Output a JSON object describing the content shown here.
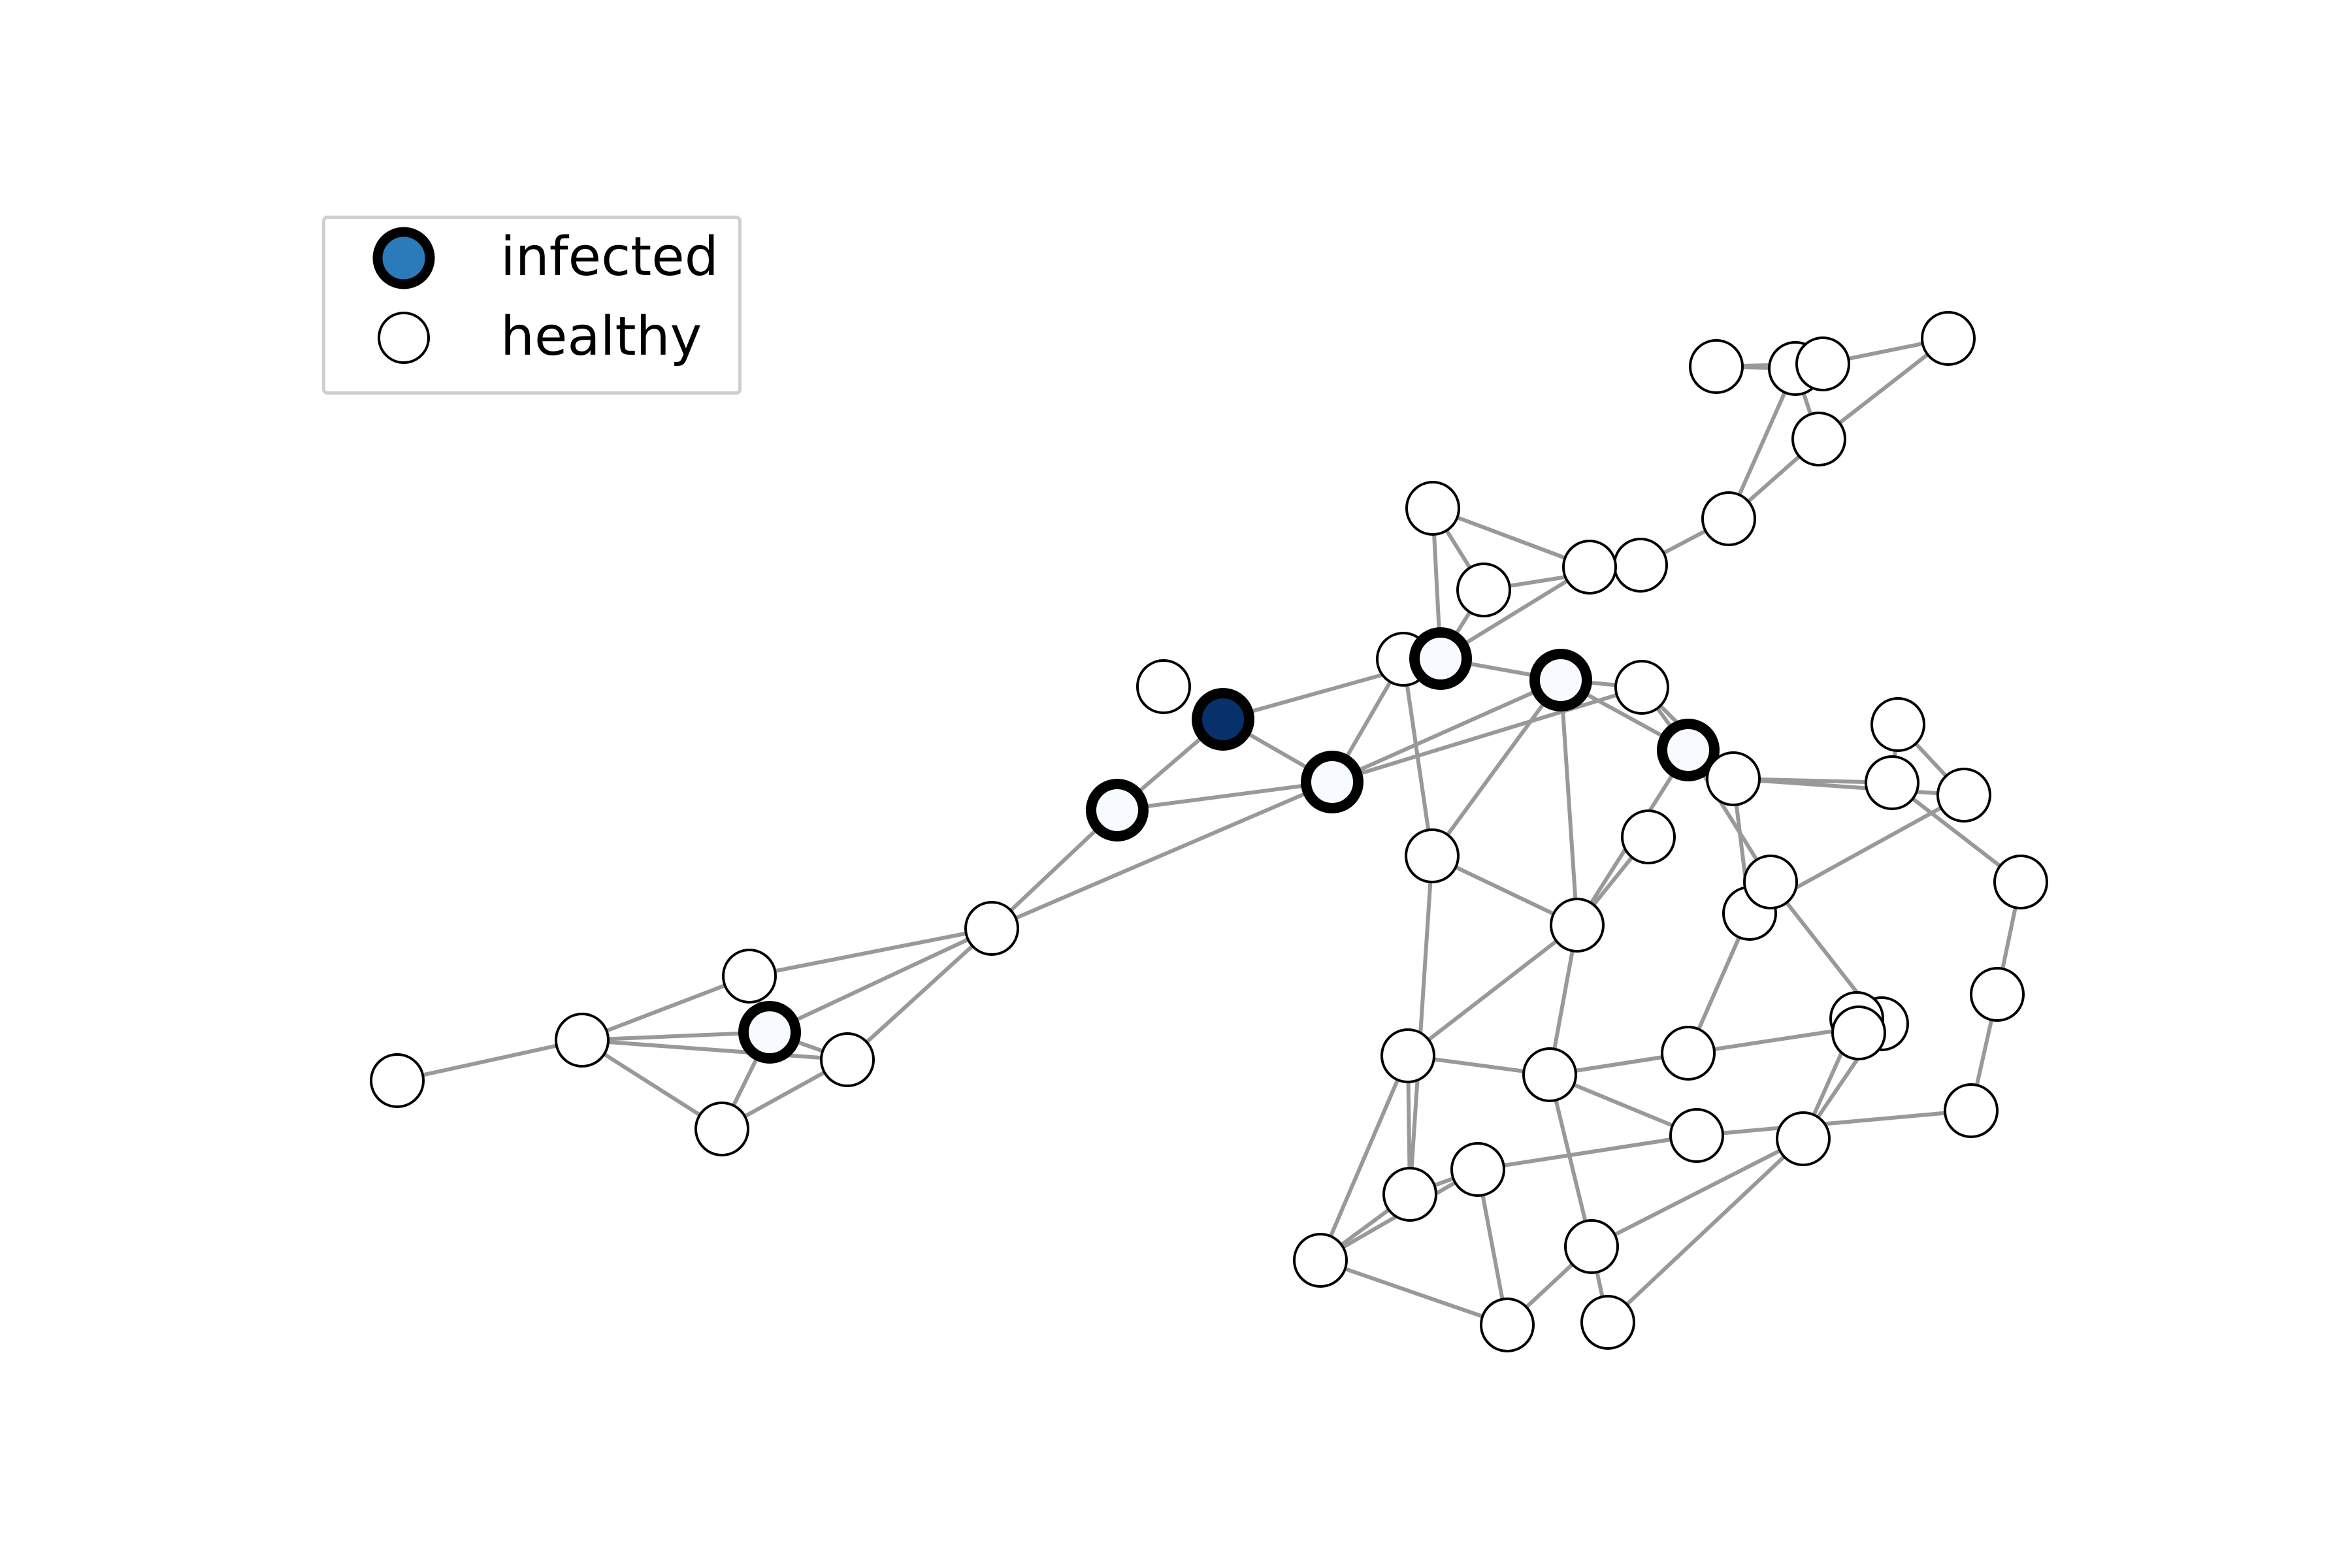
{
  "legend": {
    "infected_label": "infected",
    "healthy_label": "healthy",
    "infected_marker_fill": "#2b7bba",
    "healthy_marker_fill": "#ffffff"
  },
  "colors": {
    "edge": "#999999",
    "edge_highlight": "#555555",
    "node_outline": "#000000",
    "source_fill": "#08306b",
    "infected_fill": "#f7fbff",
    "healthy_fill": "#ffffff"
  },
  "graph": {
    "nodes": [
      {
        "id": "n1",
        "state": "healthy"
      },
      {
        "id": "n2",
        "state": "healthy"
      },
      {
        "id": "n3",
        "state": "healthy"
      },
      {
        "id": "n4",
        "state": "healthy"
      },
      {
        "id": "n5",
        "state": "healthy"
      },
      {
        "id": "n6",
        "state": "healthy"
      },
      {
        "id": "n7",
        "state": "healthy"
      },
      {
        "id": "n8",
        "state": "healthy"
      },
      {
        "id": "n9",
        "state": "healthy"
      },
      {
        "id": "n10",
        "state": "healthy"
      },
      {
        "id": "n11",
        "state": "healthy"
      },
      {
        "id": "n12",
        "state": "infected"
      },
      {
        "id": "n13",
        "state": "healthy"
      },
      {
        "id": "n14",
        "state": "infected"
      },
      {
        "id": "n15",
        "state": "healthy"
      },
      {
        "id": "n16",
        "state": "source"
      },
      {
        "id": "n17",
        "state": "infected"
      },
      {
        "id": "n18",
        "state": "infected"
      },
      {
        "id": "n19",
        "state": "healthy"
      },
      {
        "id": "n20",
        "state": "infected"
      },
      {
        "id": "n21",
        "state": "healthy"
      },
      {
        "id": "n22",
        "state": "healthy"
      },
      {
        "id": "n23",
        "state": "healthy"
      },
      {
        "id": "n24",
        "state": "healthy"
      },
      {
        "id": "n25",
        "state": "healthy"
      },
      {
        "id": "n26",
        "state": "healthy"
      },
      {
        "id": "n27",
        "state": "healthy"
      },
      {
        "id": "n28",
        "state": "healthy"
      },
      {
        "id": "n29",
        "state": "healthy"
      },
      {
        "id": "n30",
        "state": "healthy"
      },
      {
        "id": "n31",
        "state": "healthy"
      },
      {
        "id": "n32",
        "state": "healthy"
      },
      {
        "id": "n33",
        "state": "healthy"
      },
      {
        "id": "n34",
        "state": "healthy"
      },
      {
        "id": "n35",
        "state": "healthy"
      },
      {
        "id": "n36",
        "state": "healthy"
      },
      {
        "id": "n37",
        "state": "healthy"
      },
      {
        "id": "n38",
        "state": "healthy"
      },
      {
        "id": "n39",
        "state": "healthy"
      },
      {
        "id": "n40",
        "state": "healthy"
      },
      {
        "id": "n41",
        "state": "healthy"
      },
      {
        "id": "n42",
        "state": "healthy"
      },
      {
        "id": "n43",
        "state": "healthy"
      },
      {
        "id": "n44",
        "state": "healthy"
      },
      {
        "id": "n45",
        "state": "healthy"
      },
      {
        "id": "n46",
        "state": "healthy"
      },
      {
        "id": "n47",
        "state": "healthy"
      },
      {
        "id": "n48",
        "state": "healthy"
      },
      {
        "id": "n49",
        "state": "healthy"
      },
      {
        "id": "n50",
        "state": "infected"
      },
      {
        "id": "n51",
        "state": "healthy"
      },
      {
        "id": "n52",
        "state": "healthy"
      },
      {
        "id": "n53",
        "state": "healthy"
      },
      {
        "id": "n54",
        "state": "healthy"
      },
      {
        "id": "n55",
        "state": "healthy"
      },
      {
        "id": "n56",
        "state": "healthy"
      },
      {
        "id": "n57",
        "state": "healthy"
      }
    ],
    "edges": [
      [
        "n1",
        "n3"
      ],
      [
        "n1",
        "n2"
      ],
      [
        "n2",
        "n4"
      ],
      [
        "n2",
        "n6"
      ],
      [
        "n2",
        "n5"
      ],
      [
        "n3",
        "n4"
      ],
      [
        "n3",
        "n5"
      ],
      [
        "n3",
        "n6"
      ],
      [
        "n4",
        "n5"
      ],
      [
        "n6",
        "n8"
      ],
      [
        "n6",
        "n7"
      ],
      [
        "n5",
        "n8"
      ],
      [
        "n7",
        "n9"
      ],
      [
        "n7",
        "n10"
      ],
      [
        "n7",
        "n11"
      ],
      [
        "n9",
        "n10"
      ],
      [
        "n10",
        "n11"
      ],
      [
        "n10",
        "n12"
      ],
      [
        "n9",
        "n12"
      ],
      [
        "n11",
        "n13"
      ],
      [
        "n11",
        "n15"
      ],
      [
        "n13",
        "n12"
      ],
      [
        "n13",
        "n14"
      ],
      [
        "n14",
        "n15"
      ],
      [
        "n15",
        "n16"
      ],
      [
        "n16",
        "n17"
      ],
      [
        "n15",
        "n18"
      ],
      [
        "n16",
        "n19"
      ],
      [
        "n17",
        "n19"
      ],
      [
        "n17",
        "n20"
      ],
      [
        "n18",
        "n20"
      ],
      [
        "n19",
        "n21"
      ],
      [
        "n19",
        "n22"
      ],
      [
        "n19",
        "n23"
      ],
      [
        "n12",
        "n23"
      ],
      [
        "n12",
        "n24"
      ],
      [
        "n12",
        "n25"
      ],
      [
        "n24",
        "n26"
      ],
      [
        "n24",
        "n25"
      ],
      [
        "n26",
        "n27"
      ],
      [
        "n26",
        "n28"
      ],
      [
        "n27",
        "n29"
      ],
      [
        "n25",
        "n30"
      ],
      [
        "n29",
        "n31"
      ],
      [
        "n30",
        "n31"
      ],
      [
        "n30",
        "n32"
      ],
      [
        "n31",
        "n32"
      ],
      [
        "n12",
        "n32"
      ],
      [
        "n28",
        "n33"
      ],
      [
        "n33",
        "n31"
      ],
      [
        "n34",
        "n19"
      ],
      [
        "n34",
        "n21"
      ],
      [
        "n35",
        "n19"
      ],
      [
        "n20",
        "n35"
      ],
      [
        "n36",
        "n35"
      ],
      [
        "n21",
        "n37"
      ],
      [
        "n35",
        "n37"
      ],
      [
        "n20",
        "n38"
      ],
      [
        "n38",
        "n37"
      ],
      [
        "n38",
        "n35"
      ],
      [
        "n22",
        "n39"
      ],
      [
        "n22",
        "n41"
      ],
      [
        "n39",
        "n40"
      ],
      [
        "n40",
        "n41"
      ],
      [
        "n41",
        "n42"
      ],
      [
        "n42",
        "n44"
      ],
      [
        "n44",
        "n45"
      ],
      [
        "n45",
        "n46"
      ],
      [
        "n46",
        "n47"
      ],
      [
        "n47",
        "n48"
      ],
      [
        "n47",
        "n49"
      ],
      [
        "n48",
        "n49"
      ],
      [
        "n50",
        "n38"
      ],
      [
        "n50",
        "n20"
      ],
      [
        "n50",
        "n37"
      ],
      [
        "n50",
        "n51"
      ],
      [
        "n51",
        "n52"
      ],
      [
        "n52",
        "n53"
      ],
      [
        "n51",
        "n54"
      ],
      [
        "n53",
        "n54"
      ],
      [
        "n54",
        "n55"
      ],
      [
        "n53",
        "n55"
      ],
      [
        "n52",
        "n55"
      ],
      [
        "n55",
        "n56"
      ],
      [
        "n56",
        "n57"
      ],
      [
        "n57",
        "n43"
      ],
      [
        "n43",
        "n41"
      ],
      [
        "n43",
        "n42"
      ],
      [
        "n41",
        "n48"
      ],
      [
        "n48",
        "n43"
      ],
      [
        "n53",
        "n51"
      ],
      [
        "n36",
        "n53"
      ],
      [
        "n44",
        "n36"
      ],
      [
        "n39",
        "n44"
      ],
      [
        "n36",
        "n39"
      ],
      [
        "n49",
        "n45"
      ],
      [
        "n56",
        "n46"
      ],
      [
        "n46",
        "n44"
      ],
      [
        "n57",
        "n42"
      ],
      [
        "n52",
        "n36"
      ],
      [
        "n28",
        "n32"
      ]
    ]
  }
}
